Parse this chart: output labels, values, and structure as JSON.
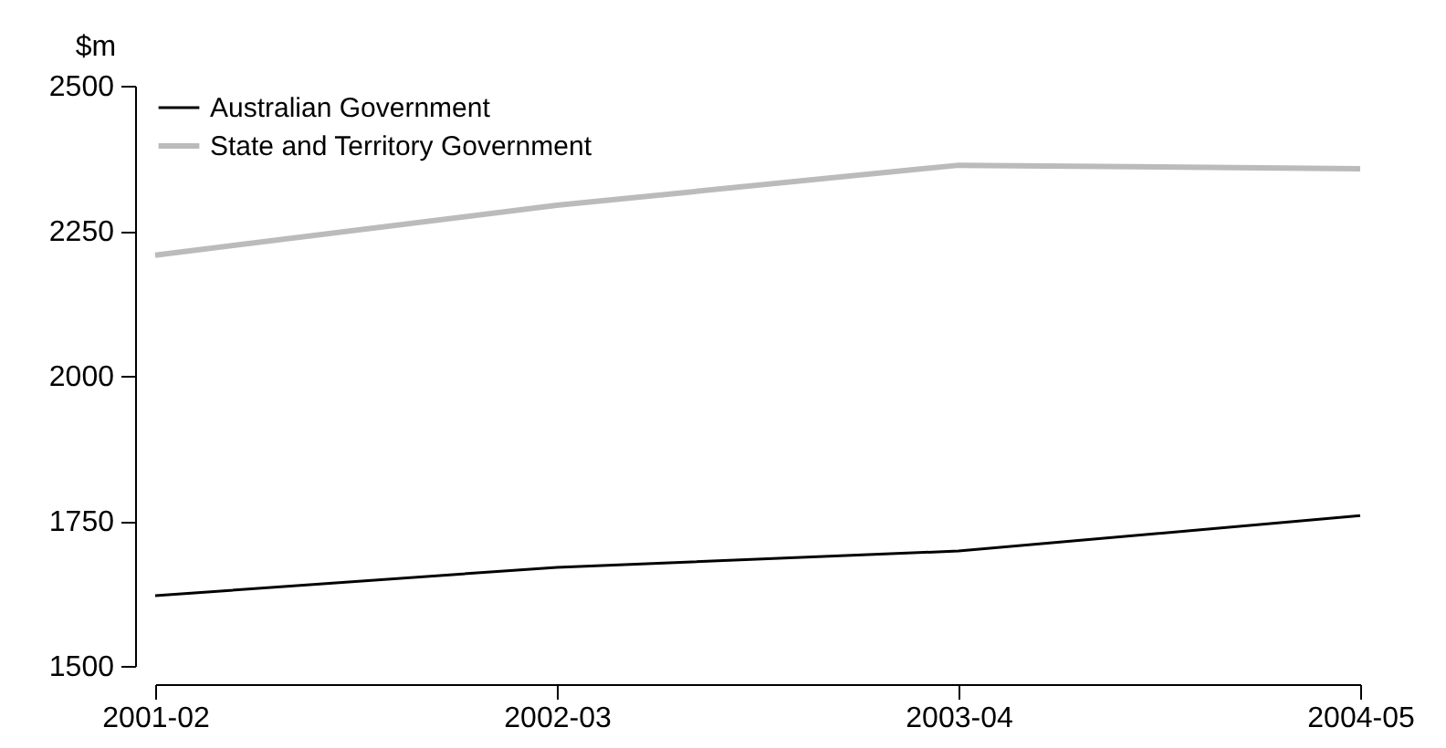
{
  "chart_data": {
    "type": "line",
    "ylabel": "$m",
    "categories": [
      "2001-02",
      "2002-03",
      "2003-04",
      "2004-05"
    ],
    "series": [
      {
        "name": "Australian Government",
        "color": "#000000",
        "values": [
          1621,
          1670,
          1698,
          1759
        ]
      },
      {
        "name": "State and Territory Government",
        "color": "#bbbbbb",
        "values": [
          2208,
          2294,
          2363,
          2357
        ]
      }
    ],
    "ylim": [
      1500,
      2500
    ],
    "yticks": [
      1500,
      1750,
      2000,
      2250,
      2500
    ],
    "grid": false,
    "legend": "top left",
    "marker": "none",
    "line_style": "solid"
  }
}
